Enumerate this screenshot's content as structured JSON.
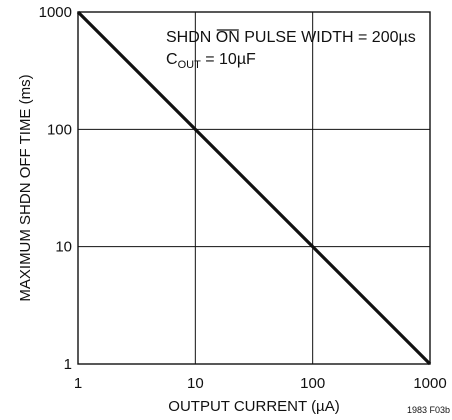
{
  "chart_data": {
    "type": "line",
    "x_scale": "log",
    "y_scale": "log",
    "xlim": [
      1,
      1000
    ],
    "ylim": [
      1,
      1000
    ],
    "grid": true,
    "xlabel": "OUTPUT CURRENT (µA)",
    "ylabel": "MAXIMUM SHDN OFF TIME (ms)",
    "x_ticks": [
      1,
      10,
      100,
      1000
    ],
    "y_ticks": [
      1,
      10,
      100,
      1000
    ],
    "x_tick_labels": [
      "1",
      "10",
      "100",
      "1000"
    ],
    "y_tick_labels": [
      "1",
      "10",
      "100",
      "1000"
    ],
    "series": [
      {
        "x": [
          1,
          10,
          100,
          1000
        ],
        "y": [
          1000,
          100,
          10,
          1
        ]
      }
    ],
    "annotations": {
      "line1_prefix": "SHDN ",
      "line1_overline": "ON",
      "line1_suffix": " PULSE WIDTH = 200µs",
      "line2_main": "C",
      "line2_sub": "OUT",
      "line2_rest": " = 10µF"
    },
    "figure_code": "1983 F03b"
  }
}
